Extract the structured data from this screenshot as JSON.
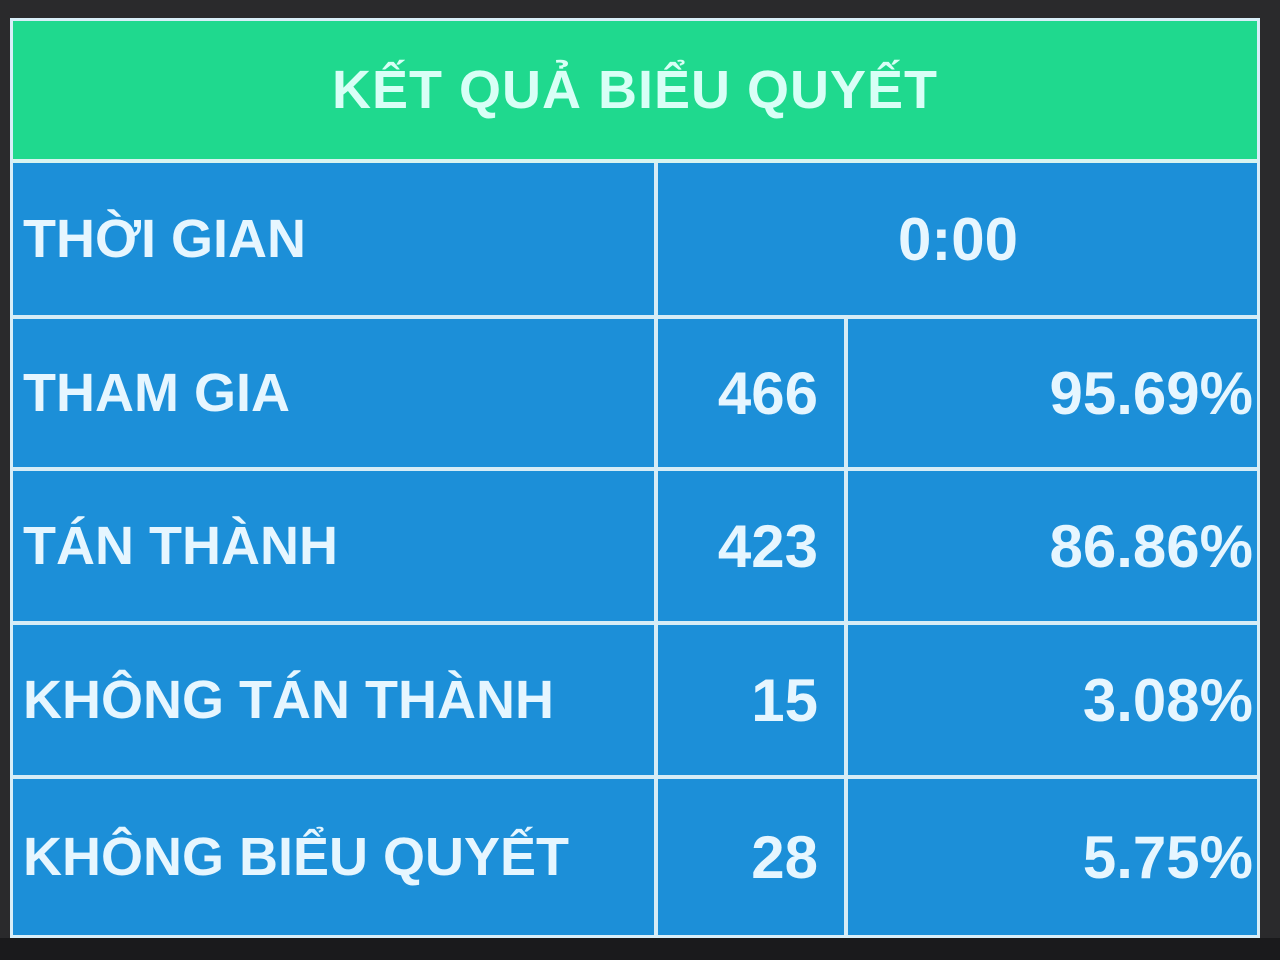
{
  "title": "KẾT QUẢ BIỂU QUYẾT",
  "time": {
    "label": "THỜI GIAN",
    "value": "0:00"
  },
  "rows": [
    {
      "label": "THAM GIA",
      "count": "466",
      "percent": "95.69%"
    },
    {
      "label": "TÁN THÀNH",
      "count": "423",
      "percent": "86.86%"
    },
    {
      "label": "KHÔNG TÁN THÀNH",
      "count": "15",
      "percent": "3.08%"
    },
    {
      "label": "KHÔNG BIỂU QUYẾT",
      "count": "28",
      "percent": "5.75%"
    }
  ],
  "colors": {
    "header": "#1fd98e",
    "body": "#1c8fd8",
    "text": "#e6f6ff"
  }
}
